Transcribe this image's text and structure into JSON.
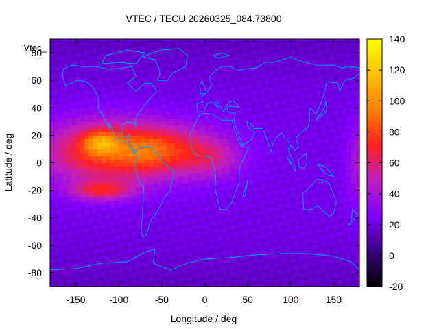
{
  "chart_data": {
    "type": "heatmap",
    "title": "VTEC / TECU 20260325_084.73800",
    "xlabel": "Longitude / deg",
    "ylabel": "Latitude / deg",
    "xlim": [
      -180,
      180
    ],
    "ylim": [
      -90,
      90
    ],
    "x_ticks": [
      -150,
      -100,
      -50,
      0,
      50,
      100,
      150
    ],
    "y_ticks": [
      -80,
      -60,
      -40,
      -20,
      0,
      20,
      40,
      60,
      80
    ],
    "colorbar": {
      "range": [
        -20,
        140
      ],
      "ticks": [
        -20,
        0,
        20,
        40,
        60,
        80,
        100,
        120,
        140
      ],
      "palette": [
        "#000000",
        "#3a0080",
        "#8000ff",
        "#c020c0",
        "#ff2020",
        "#ff8000",
        "#ffc000",
        "#ffff00"
      ]
    },
    "corner_label": "'Vtec_",
    "background_value": 22,
    "ionization_features": [
      {
        "lon": -110,
        "lat": 8,
        "sigma_lon": 55,
        "sigma_lat": 16,
        "peak": 58
      },
      {
        "lon": -120,
        "lat": 15,
        "sigma_lon": 15,
        "sigma_lat": 6,
        "peak": 42
      },
      {
        "lon": -120,
        "lat": -20,
        "sigma_lon": 25,
        "sigma_lat": 5,
        "peak": 38
      },
      {
        "lon": -65,
        "lat": 10,
        "sigma_lon": 20,
        "sigma_lat": 10,
        "peak": 12
      },
      {
        "lon": -30,
        "lat": 10,
        "sigma_lon": 40,
        "sigma_lat": 12,
        "peak": 28
      },
      {
        "lon": 10,
        "lat": 2,
        "sigma_lon": 25,
        "sigma_lat": 10,
        "peak": 18
      },
      {
        "lon": 180,
        "lat": 0,
        "sigma_lon": 10,
        "sigma_lat": 20,
        "peak": 20
      }
    ],
    "coastline_color": "#00a0ff"
  }
}
